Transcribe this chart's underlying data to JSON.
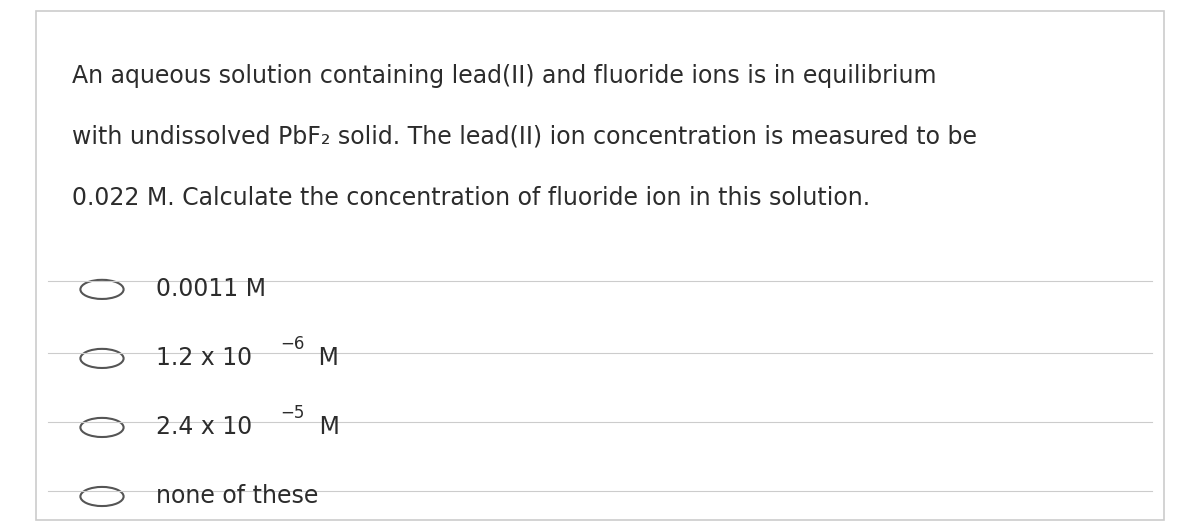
{
  "background_color": "#ffffff",
  "border_color": "#cccccc",
  "text_color": "#2c2c2c",
  "question_lines": [
    "An aqueous solution containing lead(II) and fluoride ions is in equilibrium",
    "with undissolved PbF₂ solid. The lead(II) ion concentration is measured to be",
    "0.022 M. Calculate the concentration of fluoride ion in this solution."
  ],
  "divider_color": "#cccccc",
  "circle_color": "#555555",
  "font_size_question": 17,
  "font_size_option": 17,
  "fig_width": 12.0,
  "fig_height": 5.31
}
